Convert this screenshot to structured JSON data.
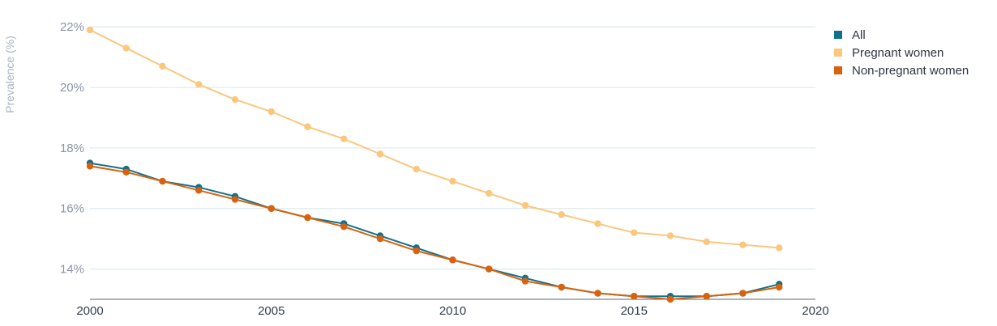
{
  "chart_data": {
    "type": "line",
    "title": "",
    "xlabel": "",
    "ylabel": "Prevalence (%)",
    "xlim": [
      2000,
      2020
    ],
    "ylim": [
      13,
      22.3
    ],
    "x_ticks": [
      "2000",
      "2005",
      "2010",
      "2015",
      "2020"
    ],
    "y_ticks": [
      "14%",
      "16%",
      "18%",
      "20%",
      "22%"
    ],
    "grid": true,
    "legend_position": "top-right",
    "x": [
      2000,
      2001,
      2002,
      2003,
      2004,
      2005,
      2006,
      2007,
      2008,
      2009,
      2010,
      2011,
      2012,
      2013,
      2014,
      2015,
      2016,
      2017,
      2018,
      2019
    ],
    "series": [
      {
        "name": "All",
        "color": "#12708a",
        "values": [
          17.5,
          17.3,
          16.9,
          16.7,
          16.4,
          16.0,
          15.7,
          15.5,
          15.1,
          14.7,
          14.3,
          14.0,
          13.7,
          13.4,
          13.2,
          13.1,
          13.1,
          13.1,
          13.2,
          13.5
        ]
      },
      {
        "name": "Pregnant women",
        "color": "#f9c77e",
        "values": [
          21.9,
          21.3,
          20.7,
          20.1,
          19.6,
          19.2,
          18.7,
          18.3,
          17.8,
          17.3,
          16.9,
          16.5,
          16.1,
          15.8,
          15.5,
          15.2,
          15.1,
          14.9,
          14.8,
          14.7
        ]
      },
      {
        "name": "Non-pregnant women",
        "color": "#d9620f",
        "values": [
          17.4,
          17.2,
          16.9,
          16.6,
          16.3,
          16.0,
          15.7,
          15.4,
          15.0,
          14.6,
          14.3,
          14.0,
          13.6,
          13.4,
          13.2,
          13.1,
          13.0,
          13.1,
          13.2,
          13.4
        ]
      }
    ]
  }
}
